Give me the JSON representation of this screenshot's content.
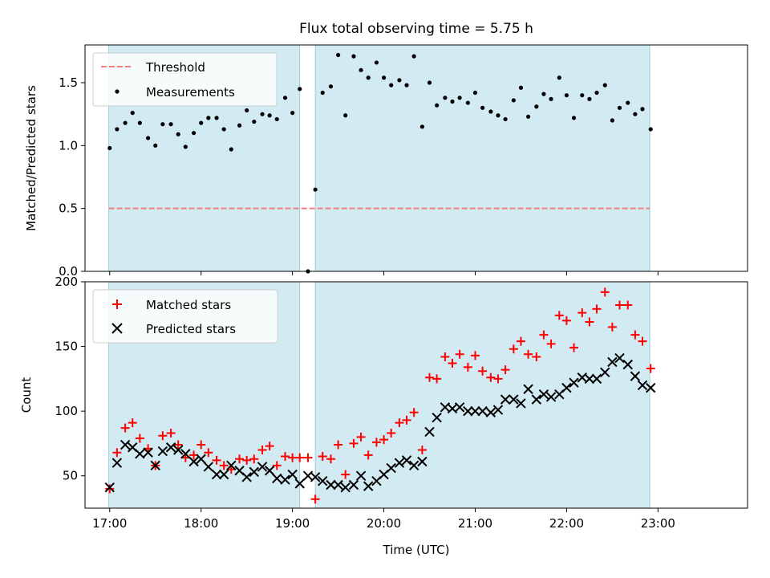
{
  "figure": {
    "title": "Flux total observing time = 5.75 h",
    "xlabel": "Time (UTC)",
    "xticks": [
      {
        "hour": 17,
        "label": "17:00"
      },
      {
        "hour": 18,
        "label": "18:00"
      },
      {
        "hour": 19,
        "label": "19:00"
      },
      {
        "hour": 20,
        "label": "20:00"
      },
      {
        "hour": 21,
        "label": "21:00"
      },
      {
        "hour": 22,
        "label": "22:00"
      },
      {
        "hour": 23,
        "label": "23:00"
      }
    ],
    "xlim": [
      16.73,
      23.98
    ],
    "observing_windows": [
      [
        16.99,
        19.08
      ],
      [
        19.25,
        22.91
      ]
    ],
    "window_color": "#add8e6"
  },
  "chart_data": [
    {
      "type": "scatter",
      "ylabel": "Matched/Predicted stars",
      "ylim": [
        0,
        1.8
      ],
      "yticks": [
        {
          "value": 0.0,
          "label": "0.0"
        },
        {
          "value": 0.5,
          "label": "0.5"
        },
        {
          "value": 1.0,
          "label": "1.0"
        },
        {
          "value": 1.5,
          "label": "1.5"
        }
      ],
      "legend": {
        "position": "upper-left",
        "entries": [
          "Threshold",
          "Measurements"
        ]
      },
      "threshold": {
        "name": "Threshold",
        "value": 0.5,
        "color": "#f08080",
        "style": "dashed"
      },
      "series": [
        {
          "name": "Measurements",
          "color": "#000000",
          "marker": "dot",
          "points": [
            [
              17.0,
              0.98
            ],
            [
              17.08,
              1.13
            ],
            [
              17.17,
              1.18
            ],
            [
              17.25,
              1.26
            ],
            [
              17.33,
              1.18
            ],
            [
              17.42,
              1.06
            ],
            [
              17.5,
              1.0
            ],
            [
              17.58,
              1.17
            ],
            [
              17.67,
              1.17
            ],
            [
              17.75,
              1.09
            ],
            [
              17.83,
              0.99
            ],
            [
              17.92,
              1.1
            ],
            [
              18.0,
              1.18
            ],
            [
              18.08,
              1.22
            ],
            [
              18.17,
              1.22
            ],
            [
              18.25,
              1.13
            ],
            [
              18.33,
              0.97
            ],
            [
              18.42,
              1.16
            ],
            [
              18.5,
              1.28
            ],
            [
              18.58,
              1.19
            ],
            [
              18.67,
              1.25
            ],
            [
              18.75,
              1.24
            ],
            [
              18.83,
              1.21
            ],
            [
              18.92,
              1.38
            ],
            [
              19.0,
              1.26
            ],
            [
              19.08,
              1.45
            ],
            [
              19.17,
              0.0
            ],
            [
              19.25,
              0.65
            ],
            [
              19.33,
              1.42
            ],
            [
              19.42,
              1.47
            ],
            [
              19.5,
              1.72
            ],
            [
              19.58,
              1.24
            ],
            [
              19.67,
              1.71
            ],
            [
              19.75,
              1.6
            ],
            [
              19.83,
              1.54
            ],
            [
              19.92,
              1.66
            ],
            [
              20.0,
              1.54
            ],
            [
              20.08,
              1.48
            ],
            [
              20.17,
              1.52
            ],
            [
              20.25,
              1.48
            ],
            [
              20.33,
              1.71
            ],
            [
              20.42,
              1.15
            ],
            [
              20.5,
              1.5
            ],
            [
              20.58,
              1.32
            ],
            [
              20.67,
              1.38
            ],
            [
              20.75,
              1.35
            ],
            [
              20.83,
              1.38
            ],
            [
              20.92,
              1.34
            ],
            [
              21.0,
              1.42
            ],
            [
              21.08,
              1.3
            ],
            [
              21.17,
              1.27
            ],
            [
              21.25,
              1.24
            ],
            [
              21.33,
              1.21
            ],
            [
              21.42,
              1.36
            ],
            [
              21.5,
              1.46
            ],
            [
              21.58,
              1.23
            ],
            [
              21.67,
              1.31
            ],
            [
              21.75,
              1.41
            ],
            [
              21.83,
              1.37
            ],
            [
              21.92,
              1.54
            ],
            [
              22.0,
              1.4
            ],
            [
              22.08,
              1.22
            ],
            [
              22.17,
              1.4
            ],
            [
              22.25,
              1.37
            ],
            [
              22.33,
              1.42
            ],
            [
              22.42,
              1.48
            ],
            [
              22.5,
              1.2
            ],
            [
              22.58,
              1.3
            ],
            [
              22.67,
              1.34
            ],
            [
              22.75,
              1.25
            ],
            [
              22.83,
              1.29
            ],
            [
              22.92,
              1.13
            ]
          ]
        }
      ]
    },
    {
      "type": "scatter",
      "ylabel": "Count",
      "ylim": [
        25,
        200
      ],
      "yticks": [
        {
          "value": 50,
          "label": "50"
        },
        {
          "value": 100,
          "label": "100"
        },
        {
          "value": 150,
          "label": "150"
        },
        {
          "value": 200,
          "label": "200"
        }
      ],
      "legend": {
        "position": "upper-left",
        "entries": [
          "Matched stars",
          "Predicted stars"
        ]
      },
      "series": [
        {
          "name": "Matched stars",
          "color": "#ff0000",
          "marker": "plus",
          "points": [
            [
              17.0,
              40
            ],
            [
              17.08,
              68
            ],
            [
              17.17,
              87
            ],
            [
              17.25,
              91
            ],
            [
              17.33,
              79
            ],
            [
              17.42,
              71
            ],
            [
              17.5,
              58
            ],
            [
              17.58,
              81
            ],
            [
              17.67,
              83
            ],
            [
              17.75,
              74
            ],
            [
              17.83,
              64
            ],
            [
              17.92,
              66
            ],
            [
              18.0,
              74
            ],
            [
              18.08,
              68
            ],
            [
              18.17,
              62
            ],
            [
              18.25,
              58
            ],
            [
              18.33,
              55
            ],
            [
              18.42,
              63
            ],
            [
              18.5,
              62
            ],
            [
              18.58,
              63
            ],
            [
              18.67,
              70
            ],
            [
              18.75,
              73
            ],
            [
              18.83,
              58
            ],
            [
              18.92,
              65
            ],
            [
              19.0,
              64
            ],
            [
              19.08,
              64
            ],
            [
              19.17,
              64
            ],
            [
              19.25,
              32
            ],
            [
              19.33,
              65
            ],
            [
              19.42,
              63
            ],
            [
              19.5,
              74
            ],
            [
              19.58,
              51
            ],
            [
              19.67,
              75
            ],
            [
              19.75,
              80
            ],
            [
              19.83,
              66
            ],
            [
              19.92,
              76
            ],
            [
              20.0,
              78
            ],
            [
              20.08,
              83
            ],
            [
              20.17,
              91
            ],
            [
              20.25,
              93
            ],
            [
              20.33,
              99
            ],
            [
              20.42,
              70
            ],
            [
              20.5,
              126
            ],
            [
              20.58,
              125
            ],
            [
              20.67,
              142
            ],
            [
              20.75,
              137
            ],
            [
              20.83,
              144
            ],
            [
              20.92,
              134
            ],
            [
              21.0,
              143
            ],
            [
              21.08,
              131
            ],
            [
              21.17,
              126
            ],
            [
              21.25,
              125
            ],
            [
              21.33,
              132
            ],
            [
              21.42,
              148
            ],
            [
              21.5,
              154
            ],
            [
              21.58,
              144
            ],
            [
              21.67,
              142
            ],
            [
              21.75,
              159
            ],
            [
              21.83,
              152
            ],
            [
              21.92,
              174
            ],
            [
              22.0,
              170
            ],
            [
              22.08,
              149
            ],
            [
              22.17,
              176
            ],
            [
              22.25,
              169
            ],
            [
              22.33,
              179
            ],
            [
              22.42,
              192
            ],
            [
              22.5,
              165
            ],
            [
              22.58,
              182
            ],
            [
              22.67,
              182
            ],
            [
              22.75,
              159
            ],
            [
              22.83,
              154
            ],
            [
              22.92,
              133
            ]
          ]
        },
        {
          "name": "Predicted stars",
          "color": "#000000",
          "marker": "x",
          "points": [
            [
              17.0,
              41
            ],
            [
              17.08,
              60
            ],
            [
              17.17,
              74
            ],
            [
              17.25,
              72
            ],
            [
              17.33,
              67
            ],
            [
              17.42,
              68
            ],
            [
              17.5,
              58
            ],
            [
              17.58,
              69
            ],
            [
              17.67,
              72
            ],
            [
              17.75,
              70
            ],
            [
              17.83,
              67
            ],
            [
              17.92,
              61
            ],
            [
              18.0,
              63
            ],
            [
              18.08,
              57
            ],
            [
              18.17,
              51
            ],
            [
              18.25,
              51
            ],
            [
              18.33,
              58
            ],
            [
              18.42,
              54
            ],
            [
              18.5,
              49
            ],
            [
              18.58,
              53
            ],
            [
              18.67,
              57
            ],
            [
              18.75,
              54
            ],
            [
              18.83,
              48
            ],
            [
              18.92,
              47
            ],
            [
              19.0,
              51
            ],
            [
              19.08,
              44
            ],
            [
              19.17,
              50
            ],
            [
              19.25,
              49
            ],
            [
              19.33,
              46
            ],
            [
              19.42,
              43
            ],
            [
              19.5,
              43
            ],
            [
              19.58,
              41
            ],
            [
              19.67,
              43
            ],
            [
              19.75,
              50
            ],
            [
              19.83,
              42
            ],
            [
              19.92,
              46
            ],
            [
              20.0,
              51
            ],
            [
              20.08,
              56
            ],
            [
              20.17,
              60
            ],
            [
              20.25,
              62
            ],
            [
              20.33,
              58
            ],
            [
              20.42,
              61
            ],
            [
              20.5,
              84
            ],
            [
              20.58,
              95
            ],
            [
              20.67,
              103
            ],
            [
              20.75,
              102
            ],
            [
              20.83,
              103
            ],
            [
              20.92,
              100
            ],
            [
              21.0,
              100
            ],
            [
              21.08,
              100
            ],
            [
              21.17,
              99
            ],
            [
              21.25,
              101
            ],
            [
              21.33,
              109
            ],
            [
              21.42,
              109
            ],
            [
              21.5,
              106
            ],
            [
              21.58,
              117
            ],
            [
              21.67,
              109
            ],
            [
              21.75,
              113
            ],
            [
              21.83,
              111
            ],
            [
              21.92,
              113
            ],
            [
              22.0,
              118
            ],
            [
              22.08,
              122
            ],
            [
              22.17,
              126
            ],
            [
              22.25,
              125
            ],
            [
              22.33,
              125
            ],
            [
              22.42,
              130
            ],
            [
              22.5,
              138
            ],
            [
              22.58,
              141
            ],
            [
              22.67,
              136
            ],
            [
              22.75,
              127
            ],
            [
              22.83,
              120
            ],
            [
              22.92,
              118
            ]
          ]
        }
      ]
    }
  ]
}
